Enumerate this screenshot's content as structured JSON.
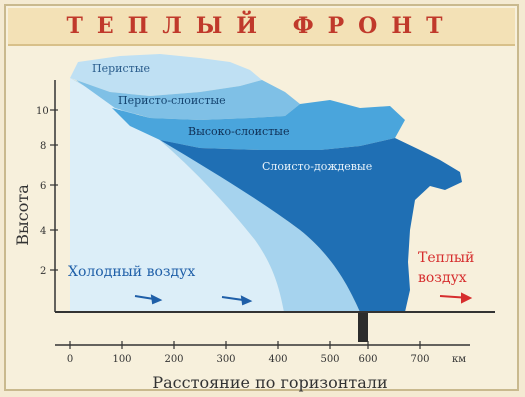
{
  "title": "ТЕПЛЫЙ ФРОНТ",
  "y_axis_label": "Высота",
  "x_axis_label": "Расстояние по горизонтали",
  "x_unit": "км",
  "x_ticks": [
    "0",
    "100",
    "200",
    "300",
    "400",
    "500",
    "600",
    "700"
  ],
  "y_ticks": [
    "2",
    "4",
    "6",
    "8",
    "10"
  ],
  "cloud_labels": [
    "Перистые",
    "Перисто-слоистые",
    "Высоко-слоистые",
    "Слоисто-дождевые"
  ],
  "cold_air_label": "Холодный воздух",
  "warm_air_label": [
    "Теплый",
    "воздух"
  ],
  "colors": {
    "cold_light": "#cfe8f6",
    "cold_mid": "#8ec6e6",
    "cirrus": "#bfe0f3",
    "cirrostratus": "#7fc0e6",
    "altostratus": "#3a9ad4",
    "nimbostratus": "#1f6fb4",
    "warm_text": "#d62d2d",
    "cold_text": "#1f5fa8",
    "axis": "#333333"
  }
}
